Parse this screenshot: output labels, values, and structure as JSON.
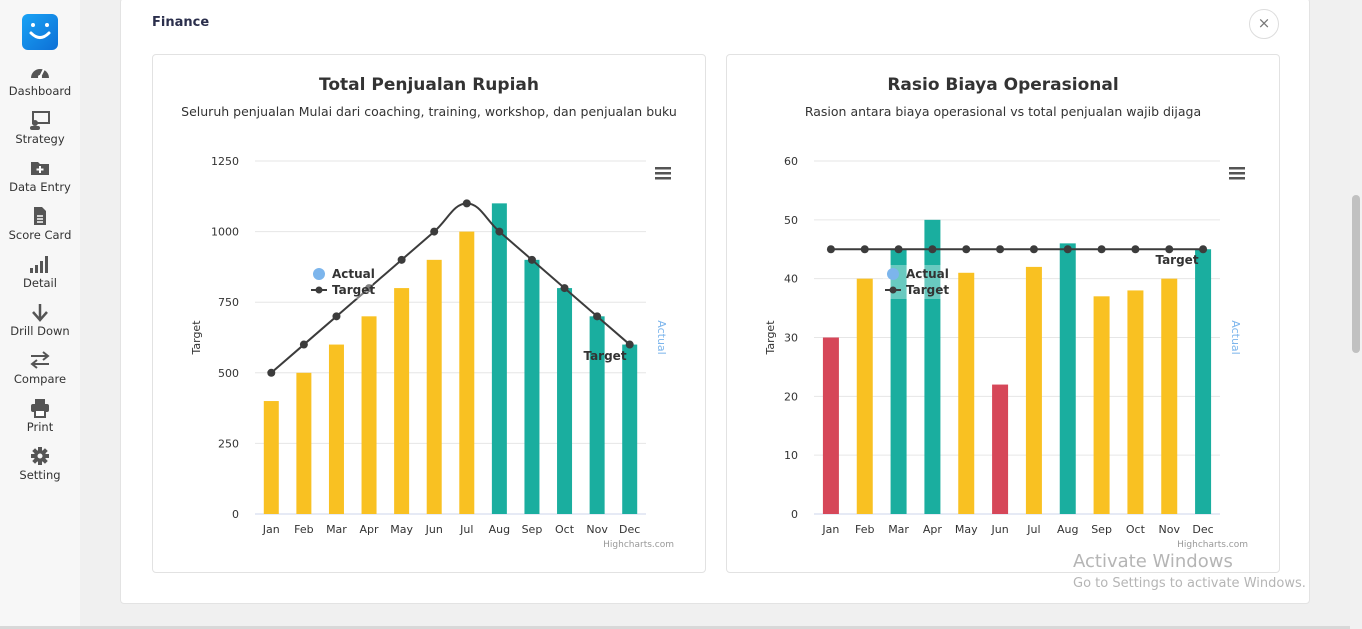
{
  "sidebar": {
    "logo_icon": "smiley-logo",
    "items": [
      {
        "label": "Dashboard",
        "icon": "speedometer-icon"
      },
      {
        "label": "Strategy",
        "icon": "presentation-icon"
      },
      {
        "label": "Data Entry",
        "icon": "folder-plus-icon"
      },
      {
        "label": "Score Card",
        "icon": "document-icon"
      },
      {
        "label": "Detail",
        "icon": "signal-bars-icon"
      },
      {
        "label": "Drill Down",
        "icon": "arrow-down-icon"
      },
      {
        "label": "Compare",
        "icon": "swap-arrows-icon"
      },
      {
        "label": "Print",
        "icon": "printer-icon"
      },
      {
        "label": "Setting",
        "icon": "gear-icon"
      }
    ]
  },
  "panel": {
    "title": "Finance",
    "close_label": "×"
  },
  "watermark": {
    "line1": "Activate Windows",
    "line2": "Go to Settings to activate Windows."
  },
  "colors": {
    "yellow": "#f9c122",
    "teal": "#1aae9f",
    "red": "#d64759",
    "line": "#3c3c3c"
  },
  "chart_data": [
    {
      "type": "bar",
      "title": "Total Penjualan Rupiah",
      "subtitle": "Seluruh penjualan Mulai dari coaching, training, workshop, dan penjualan buku",
      "ylabel": "Target",
      "ylabel_right": "Actual",
      "ylim": [
        0,
        1250
      ],
      "yticks": [
        "0",
        "250",
        "500",
        "750",
        "1000",
        "1250"
      ],
      "categories": [
        "Jan",
        "Feb",
        "Mar",
        "Apr",
        "May",
        "Jun",
        "Jul",
        "Aug",
        "Sep",
        "Oct",
        "Nov",
        "Dec"
      ],
      "series": [
        {
          "name": "Actual",
          "type": "bar",
          "values": [
            400,
            500,
            600,
            700,
            800,
            900,
            1000,
            1100,
            900,
            800,
            700,
            600
          ],
          "colors": [
            "yellow",
            "yellow",
            "yellow",
            "yellow",
            "yellow",
            "yellow",
            "yellow",
            "teal",
            "teal",
            "teal",
            "teal",
            "teal"
          ]
        },
        {
          "name": "Target",
          "type": "spline",
          "values": [
            500,
            600,
            700,
            800,
            900,
            1000,
            1100,
            1000,
            900,
            800,
            700,
            600
          ]
        }
      ],
      "legend": {
        "items": [
          "Actual",
          "Target"
        ],
        "position": "left"
      },
      "annotation": "Target",
      "credits": "Highcharts.com",
      "menu_icon": "hamburger-icon"
    },
    {
      "type": "bar",
      "title": "Rasio Biaya Operasional",
      "subtitle": "Rasion antara biaya operasional vs total penjualan wajib dijaga",
      "ylabel": "Target",
      "ylabel_right": "Actual",
      "ylim": [
        0,
        60
      ],
      "yticks": [
        "0",
        "10",
        "20",
        "30",
        "40",
        "50",
        "60"
      ],
      "categories": [
        "Jan",
        "Feb",
        "Mar",
        "Apr",
        "May",
        "Jun",
        "Jul",
        "Aug",
        "Sep",
        "Oct",
        "Nov",
        "Dec"
      ],
      "series": [
        {
          "name": "Actual",
          "type": "bar",
          "values": [
            30,
            40,
            45,
            50,
            41,
            22,
            42,
            46,
            37,
            38,
            40,
            45
          ],
          "colors": [
            "red",
            "yellow",
            "teal",
            "teal",
            "yellow",
            "red",
            "yellow",
            "teal",
            "yellow",
            "yellow",
            "yellow",
            "teal"
          ]
        },
        {
          "name": "Target",
          "type": "line",
          "values": [
            45,
            45,
            45,
            45,
            45,
            45,
            45,
            45,
            45,
            45,
            45,
            45
          ]
        }
      ],
      "legend": {
        "items": [
          "Actual",
          "Target"
        ],
        "position": "left"
      },
      "annotation": "Target",
      "credits": "Highcharts.com",
      "menu_icon": "hamburger-icon"
    }
  ]
}
